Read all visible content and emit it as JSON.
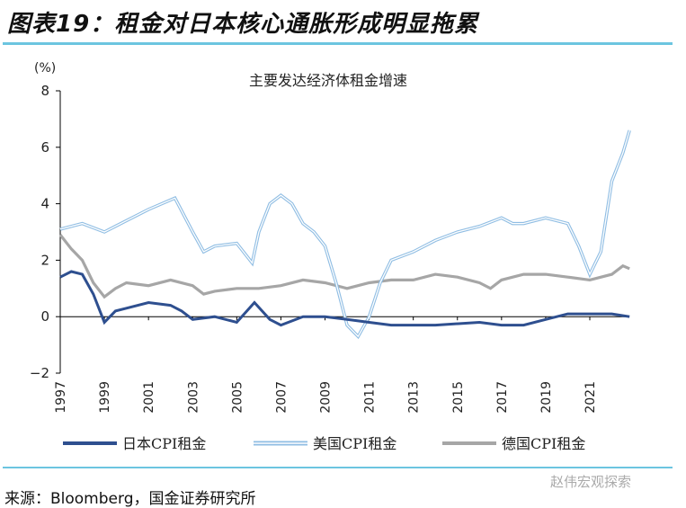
{
  "figure_title": "图表19：租金对日本核心通胀形成明显拖累",
  "source": "来源：Bloomberg，国金证券研究所",
  "watermark": "赵伟宏观探索",
  "chart_data": {
    "type": "line",
    "title": "主要发达经济体租金增速",
    "ylabel": "(%)",
    "ylim": [
      -2,
      8
    ],
    "yticks": [
      "8",
      "6",
      "4",
      "2",
      "0",
      "−2"
    ],
    "ytick_values": [
      8,
      6,
      4,
      2,
      0,
      -2
    ],
    "xlim": [
      1997,
      2023
    ],
    "xticks": [
      "1997",
      "1999",
      "2001",
      "2003",
      "2005",
      "2007",
      "2009",
      "2011",
      "2013",
      "2015",
      "2017",
      "2019",
      "2021"
    ],
    "legend_position": "bottom",
    "grid": false,
    "series": [
      {
        "name": "日本CPI租金",
        "color": "#2e4f8f",
        "x": [
          1997,
          1997.5,
          1998,
          1998.5,
          1999,
          1999.5,
          2000,
          2001,
          2002,
          2002.5,
          2003,
          2004,
          2005,
          2005.8,
          2006.5,
          2007,
          2008,
          2009,
          2010,
          2011,
          2012,
          2014,
          2016,
          2017,
          2018,
          2019,
          2020,
          2021,
          2022,
          2022.8
        ],
        "values": [
          1.4,
          1.6,
          1.5,
          0.8,
          -0.2,
          0.2,
          0.3,
          0.5,
          0.4,
          0.2,
          -0.1,
          0,
          -0.2,
          0.5,
          -0.1,
          -0.3,
          0,
          0,
          -0.1,
          -0.2,
          -0.3,
          -0.3,
          -0.2,
          -0.3,
          -0.3,
          -0.1,
          0.1,
          0.1,
          0.1,
          0.0
        ]
      },
      {
        "name": "美国CPI租金",
        "color": "#8fbde3",
        "x": [
          1997,
          1998,
          1999,
          2000,
          2001,
          2002.2,
          2003,
          2003.5,
          2004,
          2005,
          2005.7,
          2006,
          2006.5,
          2007,
          2007.5,
          2008,
          2008.5,
          2009,
          2009.5,
          2010,
          2010.5,
          2011,
          2011.5,
          2012,
          2013,
          2014,
          2015,
          2016,
          2017,
          2017.5,
          2018,
          2019,
          2020,
          2020.5,
          2021,
          2021.5,
          2022,
          2022.5,
          2022.8
        ],
        "values": [
          3.1,
          3.3,
          3.0,
          3.4,
          3.8,
          4.2,
          3.0,
          2.3,
          2.5,
          2.6,
          1.9,
          3.0,
          4.0,
          4.3,
          4.0,
          3.3,
          3.0,
          2.5,
          1.2,
          -0.3,
          -0.7,
          0.0,
          1.2,
          2.0,
          2.3,
          2.7,
          3.0,
          3.2,
          3.5,
          3.3,
          3.3,
          3.5,
          3.3,
          2.5,
          1.5,
          2.3,
          4.8,
          5.8,
          6.6
        ]
      },
      {
        "name": "德国CPI租金",
        "color": "#a6a6a6",
        "x": [
          1997,
          1997.5,
          1998,
          1998.5,
          1999,
          1999.5,
          2000,
          2001,
          2002,
          2003,
          2003.5,
          2004,
          2005,
          2006,
          2007,
          2008,
          2009,
          2010,
          2011,
          2012,
          2013,
          2014,
          2015,
          2016,
          2016.5,
          2017,
          2018,
          2019,
          2020,
          2021,
          2022,
          2022.5,
          2022.8
        ],
        "values": [
          2.9,
          2.4,
          2.0,
          1.2,
          0.7,
          1.0,
          1.2,
          1.1,
          1.3,
          1.1,
          0.8,
          0.9,
          1.0,
          1.0,
          1.1,
          1.3,
          1.2,
          1.0,
          1.2,
          1.3,
          1.3,
          1.5,
          1.4,
          1.2,
          1.0,
          1.3,
          1.5,
          1.5,
          1.4,
          1.3,
          1.5,
          1.8,
          1.7
        ]
      }
    ]
  }
}
